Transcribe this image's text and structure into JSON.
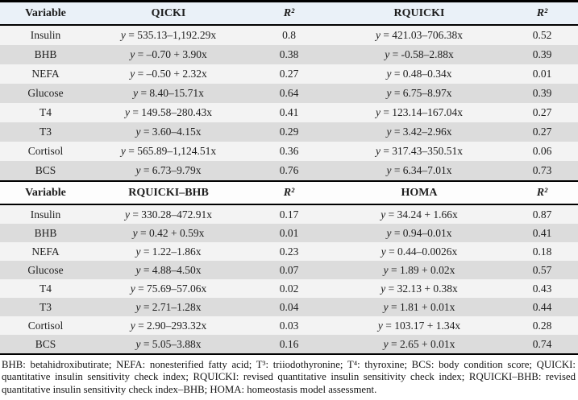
{
  "colors": {
    "header1_bg": "#eaf1f8",
    "header2_bg": "#fdfdfd",
    "row_light": "#f3f3f3",
    "row_dark": "#dcdcdc",
    "rule": "#000000"
  },
  "section1": {
    "headers": [
      "Variable",
      "QICKI",
      "R²",
      "RQUICKI",
      "R²"
    ],
    "rows": [
      {
        "variable": "Insulin",
        "eq1": "y = 535.13–1,192.29x",
        "r2_1": "0.8",
        "eq2": "y = 421.03–706.38x",
        "r2_2": "0.52"
      },
      {
        "variable": "BHB",
        "eq1": "y = –0.70 + 3.90x",
        "r2_1": "0.38",
        "eq2": "y = -0.58–2.88x",
        "r2_2": "0.39"
      },
      {
        "variable": "NEFA",
        "eq1": "y = –0.50 + 2.32x",
        "r2_1": "0.27",
        "eq2": "y = 0.48–0.34x",
        "r2_2": "0.01"
      },
      {
        "variable": "Glucose",
        "eq1": "y = 8.40–15.71x",
        "r2_1": "0.64",
        "eq2": "y = 6.75–8.97x",
        "r2_2": "0.39"
      },
      {
        "variable": "T4",
        "eq1": "y = 149.58–280.43x",
        "r2_1": "0.41",
        "eq2": "y = 123.14–167.04x",
        "r2_2": "0.27"
      },
      {
        "variable": "T3",
        "eq1": "y = 3.60–4.15x",
        "r2_1": "0.29",
        "eq2": "y = 3.42–2.96x",
        "r2_2": "0.27"
      },
      {
        "variable": "Cortisol",
        "eq1": "y = 565.89–1,124.51x",
        "r2_1": "0.36",
        "eq2": "y = 317.43–350.51x",
        "r2_2": "0.06"
      },
      {
        "variable": "BCS",
        "eq1": "y = 6.73–9.79x",
        "r2_1": "0.76",
        "eq2": "y = 6.34–7.01x",
        "r2_2": "0.73"
      }
    ]
  },
  "section2": {
    "headers": [
      "Variable",
      "RQUICKI–BHB",
      "R²",
      "HOMA",
      "R²"
    ],
    "rows": [
      {
        "variable": "Insulin",
        "eq1": "y = 330.28–472.91x",
        "r2_1": "0.17",
        "eq2": "y = 34.24 + 1.66x",
        "r2_2": "0.87"
      },
      {
        "variable": "BHB",
        "eq1": "y = 0.42 + 0.59x",
        "r2_1": "0.01",
        "eq2": "y = 0.94–0.01x",
        "r2_2": "0.41"
      },
      {
        "variable": "NEFA",
        "eq1": "y = 1.22–1.86x",
        "r2_1": "0.23",
        "eq2": "y = 0.44–0.0026x",
        "r2_2": "0.18"
      },
      {
        "variable": "Glucose",
        "eq1": "y = 4.88–4.50x",
        "r2_1": "0.07",
        "eq2": "y = 1.89 + 0.02x",
        "r2_2": "0.57"
      },
      {
        "variable": "T4",
        "eq1": "y = 75.69–57.06x",
        "r2_1": "0.02",
        "eq2": "y = 32.13 + 0.38x",
        "r2_2": "0.43"
      },
      {
        "variable": "T3",
        "eq1": "y = 2.71–1.28x",
        "r2_1": "0.04",
        "eq2": "y = 1.81 + 0.01x",
        "r2_2": "0.44"
      },
      {
        "variable": "Cortisol",
        "eq1": "y = 2.90–293.32x",
        "r2_1": "0.03",
        "eq2": "y = 103.17 + 1.34x",
        "r2_2": "0.28"
      },
      {
        "variable": "BCS",
        "eq1": "y = 5.05–3.88x",
        "r2_1": "0.16",
        "eq2": "y = 2.65 + 0.01x",
        "r2_2": "0.74"
      }
    ]
  },
  "footnote": "BHB: betahidroxibutirate; NEFA: nonesterified fatty acid; T³: triiodothyronine; T⁴: thyroxine; BCS: body condition score; QUICKI: quantitative insulin sensitivity check index; RQUICKI: revised quantitative insulin sensitivity check index; RQUICKI–BHB: revised quantitative insulin sensitivity check index–BHB; HOMA: homeostasis model assessment."
}
